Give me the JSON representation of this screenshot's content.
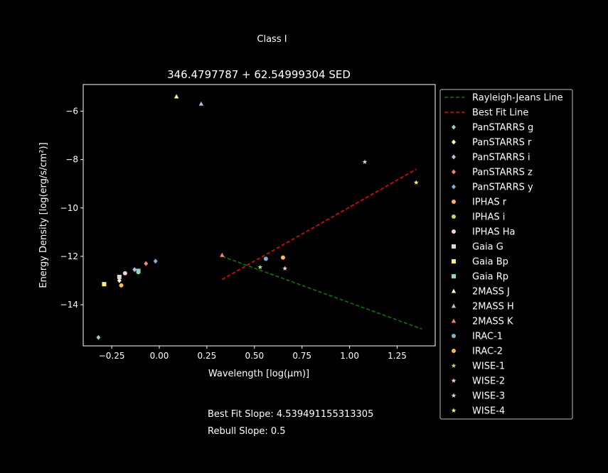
{
  "figure": {
    "suptitle": "Class I",
    "footer": {
      "best_fit": "Best Fit Slope: 4.539491155313305",
      "rebull": "Rebull Slope: 0.5"
    }
  },
  "chart_data": {
    "type": "scatter",
    "title": "346.4797787 + 62.54999304 SED",
    "xlabel": "Wavelength [log(μm)]",
    "ylabel": "Energy Density [log(erg/s/cm²)]",
    "xlim": [
      -0.4,
      1.45
    ],
    "ylim": [
      -15.7,
      -4.9
    ],
    "xticks": [
      -0.25,
      0.0,
      0.25,
      0.5,
      0.75,
      1.0,
      1.25
    ],
    "xtick_labels": [
      "−0.25",
      "0.00",
      "0.25",
      "0.50",
      "0.75",
      "1.00",
      "1.25"
    ],
    "yticks": [
      -14,
      -12,
      -10,
      -8,
      -6
    ],
    "ytick_labels": [
      "−14",
      "−12",
      "−10",
      "−8",
      "−6"
    ],
    "grid": false,
    "legend_position": "outside-right",
    "background": "#000000",
    "foreground": "#ffffff",
    "lines": [
      {
        "name": "Rayleigh-Jeans Line",
        "color": "#008000",
        "style": "dashed",
        "x": [
          0.33,
          1.38
        ],
        "y": [
          -12.0,
          -15.0
        ]
      },
      {
        "name": "Best Fit Line",
        "color": "#ff0000",
        "style": "dashed",
        "x": [
          0.33,
          1.35
        ],
        "y": [
          -12.95,
          -8.4
        ]
      }
    ],
    "series": [
      {
        "name": "PanSTARRS g",
        "marker": "diamond",
        "color": "#8dd3c7",
        "x": [
          -0.32
        ],
        "y": [
          -15.35
        ]
      },
      {
        "name": "PanSTARRS r",
        "marker": "diamond",
        "color": "#ffffb3",
        "x": [
          -0.21
        ],
        "y": [
          -13.0
        ]
      },
      {
        "name": "PanSTARRS i",
        "marker": "diamond",
        "color": "#bebada",
        "x": [
          -0.13
        ],
        "y": [
          -12.55
        ]
      },
      {
        "name": "PanSTARRS z",
        "marker": "diamond",
        "color": "#fb8072",
        "x": [
          -0.07
        ],
        "y": [
          -12.3
        ]
      },
      {
        "name": "PanSTARRS y",
        "marker": "diamond",
        "color": "#80b1d3",
        "x": [
          -0.02
        ],
        "y": [
          -12.2
        ]
      },
      {
        "name": "IPHAS r",
        "marker": "circle",
        "color": "#fdb462",
        "x": [
          -0.2
        ],
        "y": [
          -13.2
        ]
      },
      {
        "name": "IPHAS i",
        "marker": "circle",
        "color": "#b3de69",
        "x": [
          -0.11
        ],
        "y": [
          -12.65
        ]
      },
      {
        "name": "IPHAS Ha",
        "marker": "circle",
        "color": "#fccde5",
        "x": [
          -0.18
        ],
        "y": [
          -12.7
        ]
      },
      {
        "name": "Gaia G",
        "marker": "square",
        "color": "#d9d9d9",
        "x": [
          -0.21
        ],
        "y": [
          -12.85
        ]
      },
      {
        "name": "Gaia Bp",
        "marker": "square",
        "color": "#ffed6f",
        "x": [
          -0.29
        ],
        "y": [
          -13.15
        ]
      },
      {
        "name": "Gaia Rp",
        "marker": "square",
        "color": "#8dd3c7",
        "x": [
          -0.11
        ],
        "y": [
          -12.6
        ]
      },
      {
        "name": "2MASS J",
        "marker": "triangle",
        "color": "#ffffb3",
        "x": [
          0.09
        ],
        "y": [
          -5.4
        ]
      },
      {
        "name": "2MASS H",
        "marker": "triangle",
        "color": "#bebada",
        "x": [
          0.22
        ],
        "y": [
          -5.7
        ]
      },
      {
        "name": "2MASS K",
        "marker": "triangle",
        "color": "#fb8072",
        "x": [
          0.33
        ],
        "y": [
          -11.95
        ]
      },
      {
        "name": "IRAC-1",
        "marker": "circle",
        "color": "#80b1d3",
        "x": [
          0.56
        ],
        "y": [
          -12.1
        ]
      },
      {
        "name": "IRAC-2",
        "marker": "circle",
        "color": "#fdb462",
        "x": [
          0.65
        ],
        "y": [
          -12.05
        ]
      },
      {
        "name": "WISE-1",
        "marker": "star",
        "color": "#b3de69",
        "x": [
          0.53
        ],
        "y": [
          -12.45
        ]
      },
      {
        "name": "WISE-2",
        "marker": "star",
        "color": "#fccde5",
        "x": [
          0.66
        ],
        "y": [
          -12.5
        ]
      },
      {
        "name": "WISE-3",
        "marker": "star",
        "color": "#d9d9d9",
        "x": [
          1.08
        ],
        "y": [
          -8.1
        ]
      },
      {
        "name": "WISE-4",
        "marker": "star",
        "color": "#ffed6f",
        "x": [
          1.35
        ],
        "y": [
          -8.95
        ]
      }
    ]
  }
}
